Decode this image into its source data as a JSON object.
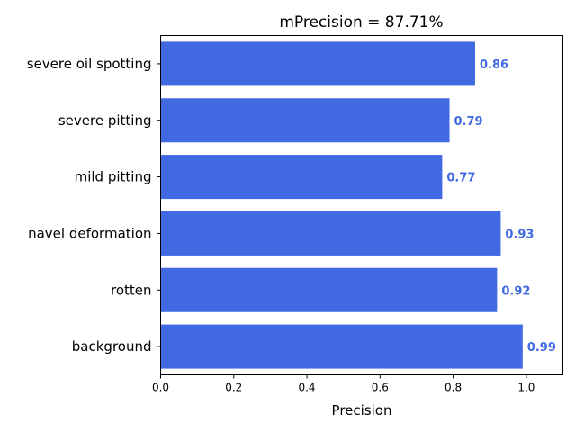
{
  "chart_data": {
    "type": "bar",
    "orientation": "horizontal",
    "title": "mPrecision = 87.71%",
    "xlabel": "Precision",
    "ylabel": "",
    "categories": [
      "severe oil spotting",
      "severe pitting",
      "mild pitting",
      "navel deformation",
      "rotten",
      "background"
    ],
    "values": [
      0.86,
      0.79,
      0.77,
      0.93,
      0.92,
      0.99
    ],
    "data_labels": [
      "0.86",
      "0.79",
      "0.77",
      "0.93",
      "0.92",
      "0.99"
    ],
    "xlim": [
      0,
      1.1
    ],
    "xticks": [
      0.0,
      0.2,
      0.4,
      0.6,
      0.8,
      1.0
    ],
    "xtick_labels": [
      "0.0",
      "0.2",
      "0.4",
      "0.6",
      "0.8",
      "1.0"
    ],
    "grid": false,
    "bar_color": "#4169e1",
    "label_color": "#4169e1"
  }
}
